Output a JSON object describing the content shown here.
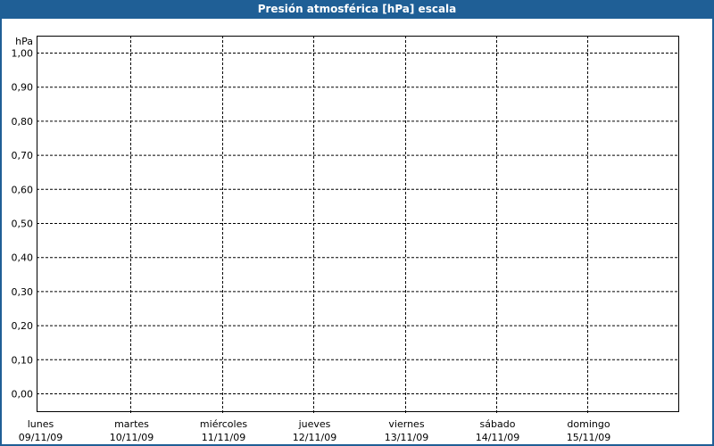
{
  "chart_data": {
    "type": "line",
    "title": "Presión atmosférica [hPa] escala",
    "ylabel": "hPa",
    "xlabel": "",
    "ylim": [
      0,
      1
    ],
    "yticks": [
      "0,00",
      "0,10",
      "0,20",
      "0,30",
      "0,40",
      "0,50",
      "0,60",
      "0,70",
      "0,80",
      "0,90",
      "1,00"
    ],
    "categories": [
      {
        "day": "lunes",
        "date": "09/11/09"
      },
      {
        "day": "martes",
        "date": "10/11/09"
      },
      {
        "day": "miércoles",
        "date": "11/11/09"
      },
      {
        "day": "jueves",
        "date": "12/11/09"
      },
      {
        "day": "viernes",
        "date": "13/11/09"
      },
      {
        "day": "sábado",
        "date": "14/11/09"
      },
      {
        "day": "domingo",
        "date": "15/11/09"
      }
    ],
    "series": [],
    "grid": true,
    "grid_style": "dashed",
    "colors": {
      "titlebar": "#1f5f96",
      "grid": "#000000"
    }
  }
}
